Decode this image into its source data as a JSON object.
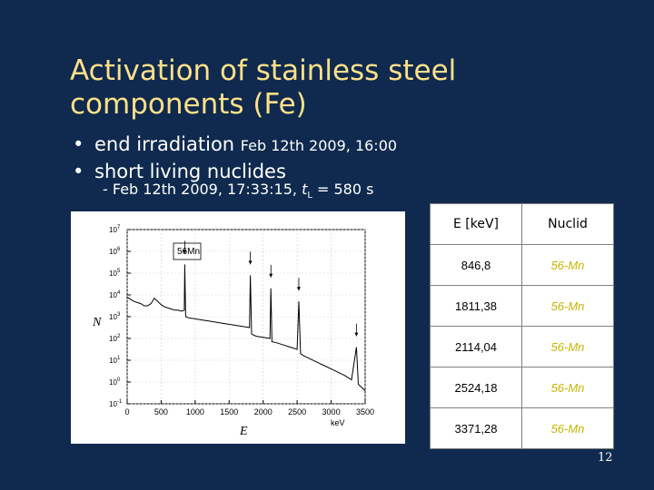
{
  "slide": {
    "title": "Activation of stainless steel components (Fe)",
    "bullets": [
      {
        "text": "end irradiation ",
        "small": "Feb 12th 2009, 16:00"
      },
      {
        "text": "short living nuclides",
        "small": ""
      }
    ],
    "sub_prefix": "- Feb 12th 2009, 17:33:15, ",
    "sub_t": "t",
    "sub_t_index": "L",
    "sub_suffix": " = 580 s",
    "page_number": "12"
  },
  "chart_data": {
    "type": "line",
    "xlabel": "E",
    "x_unit": "keV",
    "ylabel": "N",
    "xticks": [
      "0",
      "500",
      "1000",
      "1500",
      "2000",
      "2500",
      "3000",
      "3500"
    ],
    "yticks": [
      "10^-1",
      "10^0",
      "10^1",
      "10^2",
      "10^3",
      "10^4",
      "10^5",
      "10^6",
      "10^7"
    ],
    "xlim": [
      0,
      3500
    ],
    "ylim_log10": [
      -1,
      7
    ],
    "log_y": true,
    "annotation": "56Mn",
    "peaks_keV": [
      846.8,
      1811.38,
      2114.04,
      2524.18,
      3371.28
    ],
    "series": [
      {
        "x": [
          0,
          50,
          100,
          150,
          200,
          250,
          300,
          350,
          400,
          450,
          500,
          550,
          600,
          650,
          700,
          750,
          800,
          840,
          846.8,
          860,
          900,
          1000,
          1100,
          1200,
          1300,
          1400,
          1500,
          1600,
          1700,
          1800,
          1811.4,
          1830,
          1900,
          2000,
          2100,
          2114,
          2130,
          2200,
          2300,
          2400,
          2500,
          2524.2,
          2550,
          2600,
          2700,
          2800,
          2900,
          3000,
          3100,
          3200,
          3300,
          3371.3,
          3400,
          3500
        ],
        "log10y": [
          3.9,
          3.8,
          3.7,
          3.65,
          3.6,
          3.5,
          3.5,
          3.6,
          3.85,
          3.7,
          3.55,
          3.45,
          3.4,
          3.35,
          3.3,
          3.3,
          3.25,
          3.3,
          5.4,
          3.0,
          2.95,
          2.9,
          2.85,
          2.8,
          2.75,
          2.7,
          2.65,
          2.6,
          2.55,
          2.5,
          4.9,
          2.2,
          2.1,
          2.05,
          2.0,
          4.3,
          1.85,
          1.8,
          1.7,
          1.6,
          1.5,
          3.7,
          1.3,
          1.2,
          1.05,
          0.9,
          0.75,
          0.6,
          0.45,
          0.3,
          0.1,
          1.6,
          -0.1,
          -0.4
        ]
      }
    ]
  }
}
